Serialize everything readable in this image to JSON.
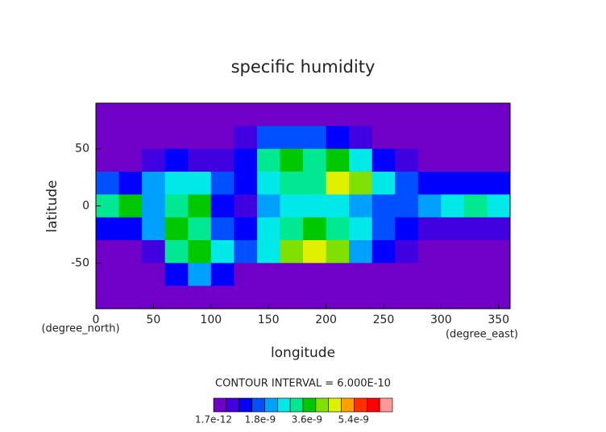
{
  "chart_data": {
    "type": "contour",
    "title": "specific humidity",
    "xlabel": "longitude",
    "ylabel": "latitude",
    "xunit": "(degree_east)",
    "yunit": "(degree_north)",
    "contour_label": "CONTOUR INTERVAL = 6.000E-10",
    "xlim": [
      0,
      360
    ],
    "ylim": [
      -90,
      90
    ],
    "xticks": [
      0,
      50,
      100,
      150,
      200,
      250,
      300,
      350
    ],
    "yticks": [
      -50,
      0,
      50
    ],
    "x": [
      10,
      30,
      50,
      70,
      90,
      110,
      130,
      150,
      170,
      190,
      210,
      230,
      250,
      270,
      290,
      310,
      330,
      350
    ],
    "y": [
      80,
      60,
      40,
      20,
      0,
      -20,
      -40,
      -60,
      -80
    ],
    "z": [
      [
        2e-10,
        2e-10,
        2e-10,
        2e-10,
        2e-10,
        2e-10,
        2e-10,
        2e-10,
        2e-10,
        2e-10,
        2e-10,
        2e-10,
        2e-10,
        2e-10,
        2e-10,
        2e-10,
        2e-10,
        2e-10
      ],
      [
        3e-10,
        3e-10,
        3e-10,
        3e-10,
        3e-10,
        3e-10,
        5e-10,
        1.5e-09,
        1.8e-09,
        1.5e-09,
        1e-09,
        5e-10,
        3e-10,
        3e-10,
        3e-10,
        3e-10,
        3e-10,
        3e-10
      ],
      [
        4e-10,
        4e-10,
        8e-10,
        1.2e-09,
        8e-10,
        6e-10,
        1.2e-09,
        3e-09,
        3.5e-09,
        3.2e-09,
        3.8e-09,
        2.5e-09,
        1e-09,
        5e-10,
        4e-10,
        4e-10,
        4e-10,
        4e-10
      ],
      [
        1.5e-09,
        1.2e-09,
        2e-09,
        2.8e-09,
        2.5e-09,
        1.5e-09,
        1e-09,
        2.5e-09,
        3e-09,
        3.2e-09,
        4.5e-09,
        4e-09,
        2.5e-09,
        1.5e-09,
        1.2e-09,
        1.2e-09,
        1.2e-09,
        1.4e-09
      ],
      [
        3e-09,
        3.5e-09,
        2e-09,
        3e-09,
        3.5e-09,
        1e-09,
        8e-10,
        2e-09,
        2.8e-09,
        2.5e-09,
        2.5e-09,
        2e-09,
        1.5e-09,
        1.5e-09,
        2e-09,
        2.5e-09,
        3.2e-09,
        2.5e-09
      ],
      [
        1e-09,
        1.2e-09,
        2e-09,
        3.5e-09,
        3e-09,
        1.5e-09,
        1e-09,
        2.5e-09,
        3e-09,
        3.5e-09,
        3e-09,
        2.5e-09,
        1.8e-09,
        1e-09,
        8e-10,
        6e-10,
        6e-10,
        8e-10
      ],
      [
        4e-10,
        4e-10,
        8e-10,
        3e-09,
        3.5e-09,
        2.5e-09,
        1.5e-09,
        2.5e-09,
        4e-09,
        4.5e-09,
        4e-09,
        2e-09,
        1e-09,
        5e-10,
        4e-10,
        4e-10,
        4e-10,
        4e-10
      ],
      [
        3e-10,
        3e-10,
        4e-10,
        1.2e-09,
        2e-09,
        1.2e-09,
        3e-10,
        3e-10,
        4e-10,
        4e-10,
        3e-10,
        3e-10,
        3e-10,
        3e-10,
        3e-10,
        3e-10,
        3e-10,
        3e-10
      ],
      [
        2e-10,
        2e-10,
        2e-10,
        2e-10,
        2e-10,
        2e-10,
        2e-10,
        2e-10,
        2e-10,
        2e-10,
        2e-10,
        2e-10,
        2e-10,
        2e-10,
        2e-10,
        2e-10,
        2e-10,
        2e-10
      ]
    ],
    "clim": [
      1.7e-12,
      6.9e-09
    ],
    "cticks": [
      1.7e-12,
      1.8e-09,
      3.6e-09,
      5.4e-09
    ],
    "colors": [
      "#7000c8",
      "#4000e0",
      "#0000ff",
      "#0050ff",
      "#00a0ff",
      "#00e8e8",
      "#00e890",
      "#00c800",
      "#80e000",
      "#e0f000",
      "#ffa000",
      "#ff3000",
      "#ff0000",
      "#ff9898"
    ]
  }
}
